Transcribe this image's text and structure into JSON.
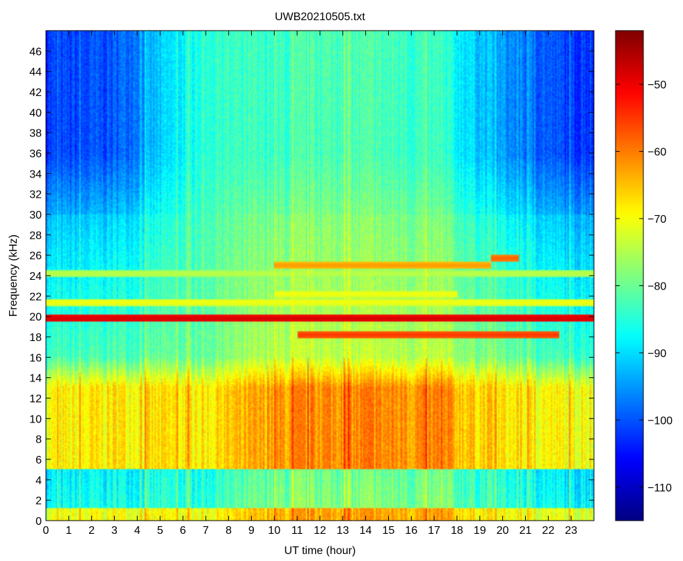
{
  "chart_data": {
    "type": "heatmap",
    "title": "UWB20210505.txt",
    "xlabel": "UT time (hour)",
    "ylabel": "Frequency (kHz)",
    "xlim": [
      0,
      24
    ],
    "ylim": [
      0,
      48
    ],
    "xticks": [
      0,
      1,
      2,
      3,
      4,
      5,
      6,
      7,
      8,
      9,
      10,
      11,
      12,
      13,
      14,
      15,
      16,
      17,
      18,
      19,
      20,
      21,
      22,
      23
    ],
    "yticks": [
      0,
      2,
      4,
      6,
      8,
      10,
      12,
      14,
      16,
      18,
      20,
      22,
      24,
      26,
      28,
      30,
      32,
      34,
      36,
      38,
      40,
      42,
      44,
      46
    ],
    "colormap": "jet",
    "clim": [
      -115,
      -42
    ],
    "colorbar_ticks": [
      -110,
      -100,
      -90,
      -80,
      -70,
      -60,
      -50
    ],
    "grid": false,
    "background_level_by_hour": [
      {
        "hour": 0,
        "high_freq_dB": -102,
        "mid_freq_dB": -84,
        "low_freq_dB": -70
      },
      {
        "hour": 3,
        "high_freq_dB": -100,
        "mid_freq_dB": -82,
        "low_freq_dB": -68
      },
      {
        "hour": 7,
        "high_freq_dB": -84,
        "mid_freq_dB": -80,
        "low_freq_dB": -68
      },
      {
        "hour": 10,
        "high_freq_dB": -84,
        "mid_freq_dB": -75,
        "low_freq_dB": -63
      },
      {
        "hour": 13,
        "high_freq_dB": -82,
        "mid_freq_dB": -74,
        "low_freq_dB": -61
      },
      {
        "hour": 17,
        "high_freq_dB": -84,
        "mid_freq_dB": -75,
        "low_freq_dB": -62
      },
      {
        "hour": 20,
        "high_freq_dB": -95,
        "mid_freq_dB": -80,
        "low_freq_dB": -68
      },
      {
        "hour": 23,
        "high_freq_dB": -102,
        "mid_freq_dB": -84,
        "low_freq_dB": -70
      }
    ],
    "transmitter_lines": [
      {
        "freq_kHz": 19.8,
        "start_hour": 0,
        "end_hour": 24,
        "level_dB": -48
      },
      {
        "freq_kHz": 18.2,
        "start_hour": 11,
        "end_hour": 22.5,
        "level_dB": -55
      },
      {
        "freq_kHz": 25.0,
        "start_hour": 10,
        "end_hour": 19.5,
        "level_dB": -62
      },
      {
        "freq_kHz": 25.7,
        "start_hour": 19.5,
        "end_hour": 20.7,
        "level_dB": -58
      },
      {
        "freq_kHz": 21.4,
        "start_hour": 0,
        "end_hour": 24,
        "level_dB": -70
      },
      {
        "freq_kHz": 22.2,
        "start_hour": 10,
        "end_hour": 18,
        "level_dB": -70
      },
      {
        "freq_kHz": 24.2,
        "start_hour": 0,
        "end_hour": 24,
        "level_dB": -74
      }
    ]
  }
}
